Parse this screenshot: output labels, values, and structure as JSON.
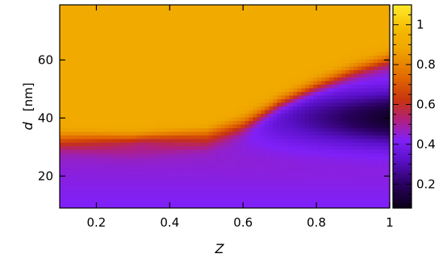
{
  "chart_data": {
    "type": "heatmap",
    "xlabel": "Z",
    "ylabel": "d",
    "ylabel_unit": "[nm]",
    "xlim": [
      0.1,
      1.0
    ],
    "ylim": [
      9,
      79
    ],
    "x_ticks": [
      0.2,
      0.4,
      0.6,
      0.8,
      1.0
    ],
    "x_tick_labels": [
      "0.2",
      "0.4",
      "0.6",
      "0.8",
      "1"
    ],
    "y_ticks": [
      20,
      40,
      60
    ],
    "y_tick_labels": [
      "20",
      "40",
      "60"
    ],
    "colorbar": {
      "range": [
        0.08,
        1.1
      ],
      "ticks": [
        0.2,
        0.4,
        0.6,
        0.8,
        1.0
      ],
      "tick_labels": [
        "0.2",
        "0.4",
        "0.6",
        "0.8",
        "1"
      ],
      "colormap": [
        {
          "v": 0.08,
          "color": "#0a0018"
        },
        {
          "v": 0.2,
          "color": "#2a0060"
        },
        {
          "v": 0.32,
          "color": "#5a10c8"
        },
        {
          "v": 0.42,
          "color": "#8020f8"
        },
        {
          "v": 0.52,
          "color": "#b02080"
        },
        {
          "v": 0.62,
          "color": "#c83210"
        },
        {
          "v": 0.74,
          "color": "#e26a00"
        },
        {
          "v": 0.88,
          "color": "#f0a600"
        },
        {
          "v": 0.97,
          "color": "#f4b800"
        },
        {
          "v": 1.1,
          "color": "#ffea2a"
        }
      ]
    },
    "regions": {
      "upper_plateau_value": 0.9,
      "lower_band_value": 0.42,
      "boundary_ridge_value": 0.66,
      "dark_pocket_min_value": 0.12,
      "boundary_d_at_Z": [
        {
          "Z": 0.1,
          "d": 31
        },
        {
          "Z": 0.3,
          "d": 30
        },
        {
          "Z": 0.5,
          "d": 32
        },
        {
          "Z": 0.6,
          "d": 37
        },
        {
          "Z": 0.7,
          "d": 45
        },
        {
          "Z": 0.8,
          "d": 51
        },
        {
          "Z": 0.9,
          "d": 56
        },
        {
          "Z": 1.0,
          "d": 60
        }
      ]
    }
  }
}
